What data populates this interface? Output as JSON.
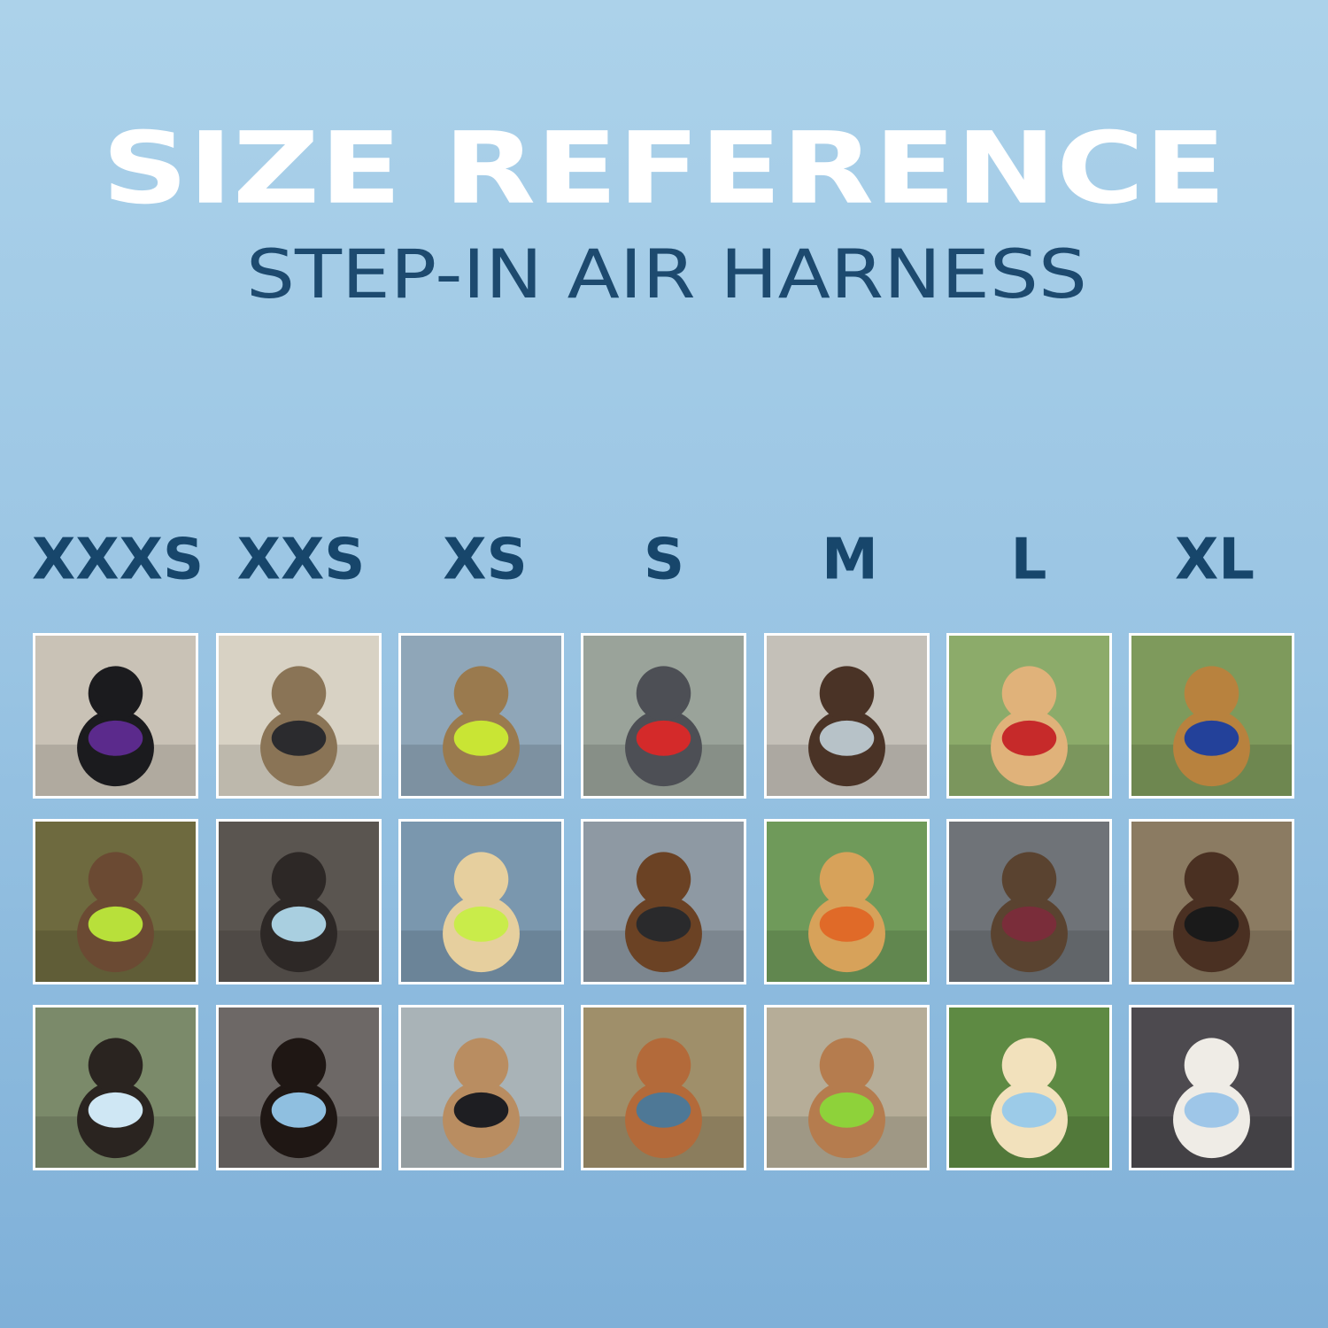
{
  "header": {
    "title": "SIZE REFERENCE",
    "subtitle": "STEP-IN AIR HARNESS"
  },
  "sizes": [
    "XXXS",
    "XXS",
    "XS",
    "S",
    "M",
    "L",
    "XL"
  ]
}
